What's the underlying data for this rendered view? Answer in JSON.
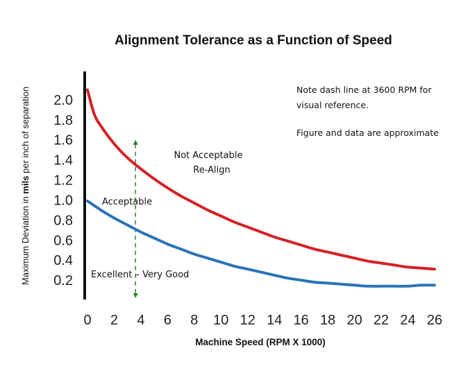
{
  "chart_data": {
    "type": "line",
    "title": "Alignment Tolerance as a Function of Speed",
    "xlabel": "Machine Speed (RPM  X 1000)",
    "ylabel_prefix": "Maximum Deviation in ",
    "ylabel_bold": "mils",
    "ylabel_suffix": " per inch of separation",
    "xlim": [
      0,
      26
    ],
    "ylim": [
      0,
      2.2
    ],
    "x_ticks": [
      "0",
      "2",
      "4",
      "6",
      "8",
      "10",
      "12",
      "14",
      "16",
      "18",
      "20",
      "22",
      "24",
      "26"
    ],
    "y_ticks": [
      "2.0",
      "1.8",
      "1.6",
      "1.4",
      "1.2",
      "1.0",
      "0.8",
      "0.6",
      "0.4",
      "0.2"
    ],
    "grid": false,
    "legend": "none",
    "series": [
      {
        "color": "#d62024",
        "x": [
          0,
          0.5,
          1,
          2,
          3,
          4,
          5,
          6,
          7,
          8,
          9,
          10,
          11,
          12,
          13,
          14,
          15,
          16,
          17,
          18,
          19,
          20,
          21,
          22,
          23,
          24,
          25,
          26
        ],
        "y": [
          2.1,
          1.86,
          1.74,
          1.56,
          1.42,
          1.31,
          1.21,
          1.12,
          1.04,
          0.97,
          0.9,
          0.84,
          0.78,
          0.73,
          0.68,
          0.63,
          0.59,
          0.55,
          0.51,
          0.48,
          0.45,
          0.42,
          0.39,
          0.37,
          0.35,
          0.33,
          0.32,
          0.31
        ]
      },
      {
        "color": "#2a73b8",
        "x": [
          0,
          1,
          2,
          3,
          4,
          5,
          6,
          7,
          8,
          9,
          10,
          11,
          12,
          13,
          14,
          15,
          16,
          17,
          18,
          19,
          20,
          21,
          22,
          23,
          24,
          25,
          26
        ],
        "y": [
          0.99,
          0.9,
          0.82,
          0.75,
          0.68,
          0.62,
          0.56,
          0.51,
          0.46,
          0.42,
          0.38,
          0.34,
          0.31,
          0.28,
          0.25,
          0.22,
          0.2,
          0.18,
          0.17,
          0.16,
          0.15,
          0.14,
          0.14,
          0.14,
          0.14,
          0.15,
          0.15
        ]
      }
    ],
    "reference_line": {
      "x": 3.6,
      "y_from": 0,
      "y_to": 1.6,
      "color": "#2e7d32",
      "style": "dashed"
    },
    "annotations": {
      "note1_line1": "Note dash line at 3600 RPM for",
      "note1_line2": "visual  reference.",
      "note2": "Figure and data are approximate",
      "not_acceptable_line1": "Not Acceptable",
      "not_acceptable_line2": "Re-Align",
      "acceptable": "Acceptable",
      "excellent": "Excellent – Very Good"
    }
  }
}
